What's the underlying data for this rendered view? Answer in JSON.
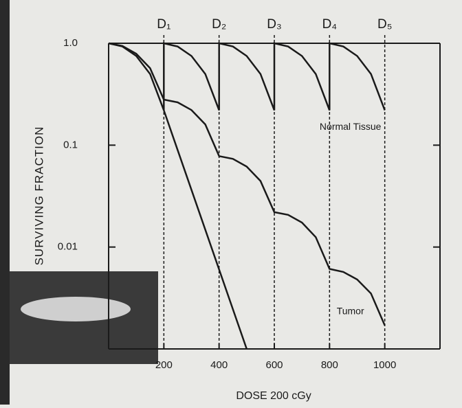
{
  "chart_data": {
    "type": "line",
    "y_label": "SURVIVING FRACTION",
    "x_label": "DOSE 200 cGy",
    "log_y": true,
    "xlim": [
      0,
      1200
    ],
    "ylim": [
      0.001,
      1
    ],
    "xticks": [
      200,
      400,
      600,
      800,
      1000
    ],
    "yticks": [
      {
        "value": 1,
        "label": "1.0"
      },
      0.1,
      0.01
    ],
    "markers": {
      "x": [
        200,
        400,
        600,
        800,
        1000
      ],
      "labels": [
        "D₁",
        "D₂",
        "D₃",
        "D₄",
        "D₅"
      ]
    },
    "series": [
      {
        "name": "Normal Tissue",
        "color": "#1a1a1a",
        "x": [
          0,
          50,
          100,
          150,
          200,
          200,
          250,
          300,
          350,
          400,
          400,
          450,
          500,
          550,
          600,
          600,
          650,
          700,
          750,
          800,
          800,
          850,
          900,
          950,
          1000
        ],
        "values": [
          1,
          0.93,
          0.75,
          0.5,
          0.22,
          1,
          0.93,
          0.75,
          0.5,
          0.22,
          1,
          0.93,
          0.75,
          0.5,
          0.22,
          1,
          0.93,
          0.75,
          0.5,
          0.22,
          1,
          0.93,
          0.75,
          0.5,
          0.22
        ]
      },
      {
        "name": "Tumor",
        "color": "#1a1a1a",
        "x": [
          0,
          50,
          100,
          150,
          200,
          250,
          300,
          350,
          400,
          450,
          500,
          550,
          600,
          650,
          700,
          750,
          800,
          850,
          900,
          950,
          1000
        ],
        "values": [
          1,
          0.94,
          0.79,
          0.57,
          0.28,
          0.263,
          0.221,
          0.16,
          0.078,
          0.0733,
          0.0616,
          0.0445,
          0.022,
          0.0207,
          0.0174,
          0.0125,
          0.0061,
          0.0057,
          0.0048,
          0.0035,
          0.0017
        ]
      },
      {
        "color": "#1a1a1a",
        "x": [
          200,
          500
        ],
        "values": [
          0.22,
          0.001
        ]
      }
    ]
  }
}
